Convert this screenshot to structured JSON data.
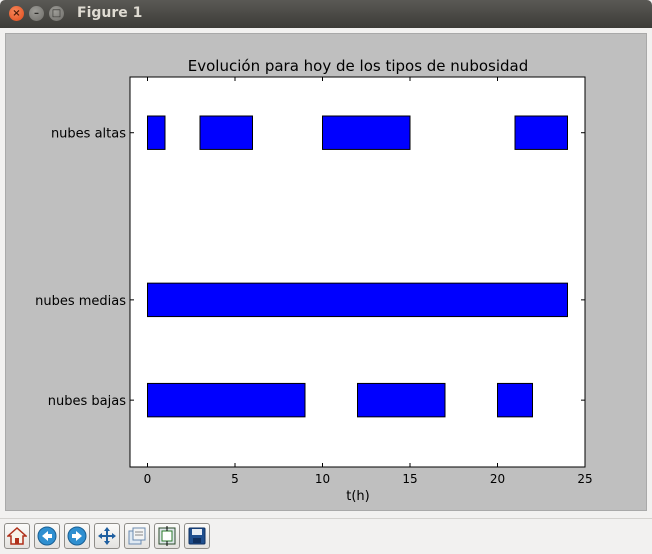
{
  "window": {
    "title": "Figure 1"
  },
  "toolbar": {
    "buttons": [
      {
        "icon": "home-icon"
      },
      {
        "icon": "back-arrow-icon"
      },
      {
        "icon": "forward-arrow-icon"
      },
      {
        "icon": "pan-icon"
      },
      {
        "icon": "zoom-icon"
      },
      {
        "icon": "subplots-configure-icon"
      },
      {
        "icon": "save-icon"
      }
    ]
  },
  "colors": {
    "bar_fill": "#0000ff",
    "bar_edge": "#000000",
    "figure_bg": "#bfbfbf",
    "axes_bg": "#ffffff"
  },
  "chart_data": {
    "type": "bar",
    "orientation": "horizontal-broken",
    "title": "Evolución para hoy de los tipos de nubosidad",
    "xlabel": "t(h)",
    "ylabel": "",
    "xlim": [
      -1,
      25
    ],
    "ylim": [
      0,
      35
    ],
    "xticks": [
      0,
      5,
      10,
      15,
      20,
      25
    ],
    "grid": false,
    "series": [
      {
        "name": "nubes altas",
        "y": 30,
        "height": 3,
        "segments": [
          [
            0,
            1
          ],
          [
            3,
            6
          ],
          [
            10,
            15
          ],
          [
            21,
            24
          ]
        ]
      },
      {
        "name": "nubes medias",
        "y": 15,
        "height": 3,
        "segments": [
          [
            0,
            24
          ]
        ]
      },
      {
        "name": "nubes bajas",
        "y": 6,
        "height": 3,
        "segments": [
          [
            0,
            9
          ],
          [
            12,
            17
          ],
          [
            20,
            22
          ]
        ]
      }
    ]
  }
}
